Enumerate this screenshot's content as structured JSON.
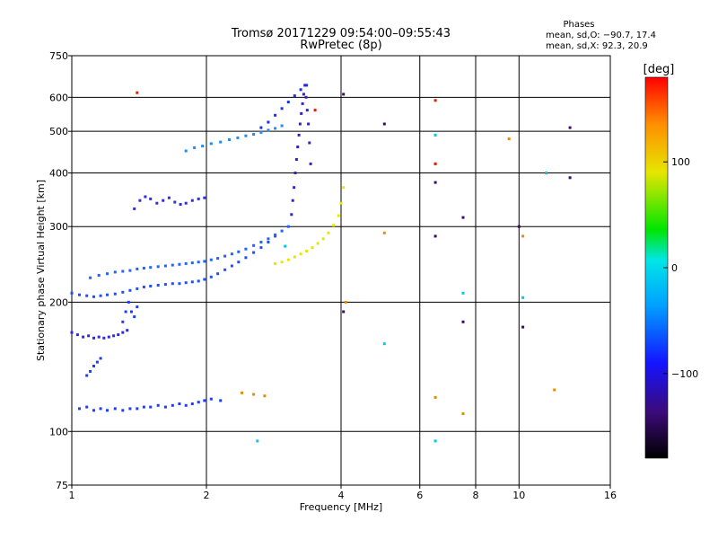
{
  "chart_data": {
    "type": "scatter",
    "title": "Tromsø 20171229 09:54:00–09:55:43",
    "subtitle": "RwPretec (8p)",
    "legend_heading": "Phases",
    "legend_stats": [
      "mean, sd,O: −90.7, 17.4",
      "mean, sd,X:  92.3, 20.9"
    ],
    "xlabel": "Frequency [MHz]",
    "ylabel": "Stationary phase Virtual Height [km]",
    "x_scale": "log",
    "y_scale": "log",
    "xlim": [
      1,
      16
    ],
    "ylim": [
      75,
      750
    ],
    "xticks": [
      1,
      2,
      4,
      6,
      8,
      10,
      16
    ],
    "xtick_labels": [
      "1",
      "2",
      "4",
      "6",
      "8",
      "10",
      "16"
    ],
    "yticks": [
      75,
      100,
      200,
      300,
      400,
      500,
      600,
      750
    ],
    "ytick_labels": [
      "75",
      "100",
      "200",
      "300",
      "400",
      "500",
      "600",
      "750"
    ],
    "grid": true,
    "colorbar": {
      "label": "[deg]",
      "range": [
        -180,
        180
      ],
      "ticks": [
        100,
        0,
        -100
      ],
      "tick_labels": [
        "100",
        "0",
        "−100"
      ]
    },
    "series": [
      {
        "color": "#1e3cff",
        "x": [
          1.04,
          1.08,
          1.12,
          1.16,
          1.2,
          1.25,
          1.3,
          1.35,
          1.4,
          1.45,
          1.5,
          1.56,
          1.62,
          1.68,
          1.74,
          1.8,
          1.86,
          1.92,
          1.98,
          2.05,
          2.15
        ],
        "y": [
          113,
          114,
          112,
          113,
          112,
          113,
          112,
          113,
          113,
          114,
          114,
          115,
          114,
          115,
          116,
          115,
          116,
          117,
          118,
          119,
          118
        ]
      },
      {
        "color": "#2a2ae0",
        "x": [
          1.0,
          1.03,
          1.06,
          1.09,
          1.12,
          1.15,
          1.18,
          1.21,
          1.24,
          1.27,
          1.3,
          1.33
        ],
        "y": [
          170,
          168,
          166,
          167,
          165,
          166,
          165,
          166,
          167,
          168,
          170,
          172
        ]
      },
      {
        "color": "#1e50ff",
        "x": [
          1.0,
          1.04,
          1.08,
          1.12,
          1.16,
          1.2,
          1.25,
          1.3,
          1.35,
          1.4,
          1.45,
          1.5,
          1.56,
          1.62,
          1.68,
          1.74,
          1.8,
          1.86,
          1.92,
          1.98,
          2.05,
          2.12,
          2.2,
          2.28,
          2.36,
          2.45,
          2.55,
          2.65,
          2.75,
          2.85
        ],
        "y": [
          210,
          208,
          207,
          206,
          207,
          208,
          209,
          211,
          213,
          215,
          217,
          218,
          219,
          220,
          221,
          221,
          222,
          223,
          224,
          226,
          229,
          233,
          238,
          243,
          248,
          254,
          261,
          268,
          276,
          285
        ]
      },
      {
        "color": "#1e64ff",
        "x": [
          1.1,
          1.15,
          1.2,
          1.25,
          1.3,
          1.35,
          1.4,
          1.45,
          1.5,
          1.56,
          1.62,
          1.68,
          1.74,
          1.8,
          1.86,
          1.92,
          1.98,
          2.05,
          2.12,
          2.2,
          2.28,
          2.36,
          2.45,
          2.55,
          2.65,
          2.75,
          2.85,
          2.95,
          3.05
        ],
        "y": [
          228,
          231,
          233,
          235,
          236,
          237,
          239,
          240,
          241,
          242,
          243,
          244,
          245,
          246,
          247,
          248,
          249,
          251,
          253,
          256,
          259,
          262,
          266,
          271,
          276,
          281,
          287,
          293,
          300
        ]
      },
      {
        "color": "#1e8cf0",
        "x": [
          1.8,
          1.88,
          1.96,
          2.05,
          2.15,
          2.25,
          2.35,
          2.45,
          2.55,
          2.65,
          2.75,
          2.85,
          2.95
        ],
        "y": [
          450,
          458,
          462,
          468,
          472,
          478,
          483,
          488,
          492,
          497,
          503,
          508,
          515
        ]
      },
      {
        "color": "#1432e6",
        "x": [
          2.65,
          2.75,
          2.85,
          2.95,
          3.05,
          3.15,
          3.25,
          3.35
        ],
        "y": [
          510,
          525,
          545,
          565,
          585,
          605,
          625,
          640
        ]
      },
      {
        "color": "#3030d0",
        "x": [
          1.38,
          1.42,
          1.46,
          1.5,
          1.55,
          1.6,
          1.65,
          1.7,
          1.75,
          1.8,
          1.86,
          1.92,
          1.98
        ],
        "y": [
          330,
          345,
          352,
          348,
          340,
          345,
          350,
          342,
          338,
          340,
          345,
          348,
          350
        ]
      },
      {
        "color": "#3a1ec8",
        "x": [
          3.1,
          3.12,
          3.14,
          3.16,
          3.18,
          3.2,
          3.22,
          3.24,
          3.26,
          3.28,
          3.3,
          3.32,
          3.34,
          3.36,
          3.38,
          3.4,
          3.42
        ],
        "y": [
          320,
          345,
          370,
          400,
          430,
          460,
          490,
          520,
          550,
          580,
          610,
          640,
          600,
          560,
          520,
          470,
          420
        ]
      },
      {
        "color": "#e6e600",
        "x": [
          2.85,
          2.95,
          3.05,
          3.15,
          3.25,
          3.35,
          3.45,
          3.55,
          3.65,
          3.75,
          3.85,
          3.95,
          4.0,
          4.05
        ],
        "y": [
          246,
          248,
          251,
          255,
          259,
          263,
          268,
          274,
          281,
          290,
          302,
          318,
          340,
          370
        ]
      },
      {
        "color": "#1e3cff",
        "x": [
          1.08,
          1.1,
          1.12,
          1.14,
          1.16,
          1.3,
          1.32,
          1.34,
          1.36,
          1.38,
          1.4
        ],
        "y": [
          135,
          138,
          142,
          145,
          148,
          180,
          190,
          200,
          190,
          185,
          195
        ]
      },
      {
        "color": "#e68c00",
        "x": [
          2.4,
          2.55,
          2.7,
          4.1,
          5.0,
          6.5,
          6.5,
          7.5,
          9.5,
          10.2,
          12.0
        ],
        "y": [
          123,
          122,
          121,
          200,
          290,
          420,
          120,
          110,
          480,
          285,
          125
        ]
      },
      {
        "color": "#e61e00",
        "x": [
          1.4,
          6.5,
          6.5,
          3.5
        ],
        "y": [
          615,
          590,
          420,
          560
        ]
      },
      {
        "color": "#00c8e6",
        "x": [
          3.0,
          6.5,
          7.5,
          10.2,
          11.5,
          6.5,
          2.6,
          5.0
        ],
        "y": [
          270,
          490,
          210,
          205,
          400,
          95,
          95,
          160
        ]
      },
      {
        "color": "#3c0a64",
        "x": [
          4.05,
          5.0,
          6.5,
          7.5,
          10.0,
          13.0,
          13.0,
          10.2,
          7.5,
          6.5,
          4.05
        ],
        "y": [
          190,
          520,
          380,
          315,
          300,
          510,
          390,
          175,
          180,
          285,
          610
        ]
      }
    ]
  }
}
